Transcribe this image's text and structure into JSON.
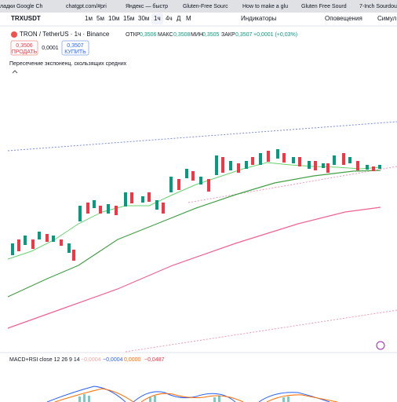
{
  "browser": {
    "bookmarks": [
      "ладки Google Ch",
      "chatgpt.com/#pri",
      "Яндекс — быстр",
      "Gluten-Free Sourc",
      "How to make a glu",
      "Gluten Free Sourd",
      "7-Inch Sourdou"
    ]
  },
  "toolbar": {
    "symbol": "TRXUSDT",
    "intervals": [
      "1м",
      "5м",
      "10м",
      "15м",
      "30м",
      "1ч",
      "4ч",
      "Д",
      "М"
    ],
    "indicators": "Индикаторы",
    "alerts": "Оповещения",
    "replay": "Симул"
  },
  "legend": {
    "title": "TRON / TetherUS · 1ч · Binance",
    "open_label": "ОТКР",
    "open": "0,3506",
    "high_label": "МАКС",
    "high": "0,3508",
    "low_label": "МИН",
    "low": "0,3505",
    "close_label": "ЗАКР",
    "close": "0,3507",
    "change": "+0,0001 (+0,03%)"
  },
  "trade": {
    "sell_price": "0,3506",
    "sell": "ПРОДАТЬ",
    "spread": "0,0001",
    "buy_price": "0,3507",
    "buy": "КУПИТЬ"
  },
  "indicator": "Пересечение экспоненц. скользящих средних",
  "macd": {
    "title": "MACD+RSI close 12 26 9 14",
    "values": [
      "−0,0004",
      "−0,0004",
      "0,0000",
      "−0,0487"
    ]
  }
}
